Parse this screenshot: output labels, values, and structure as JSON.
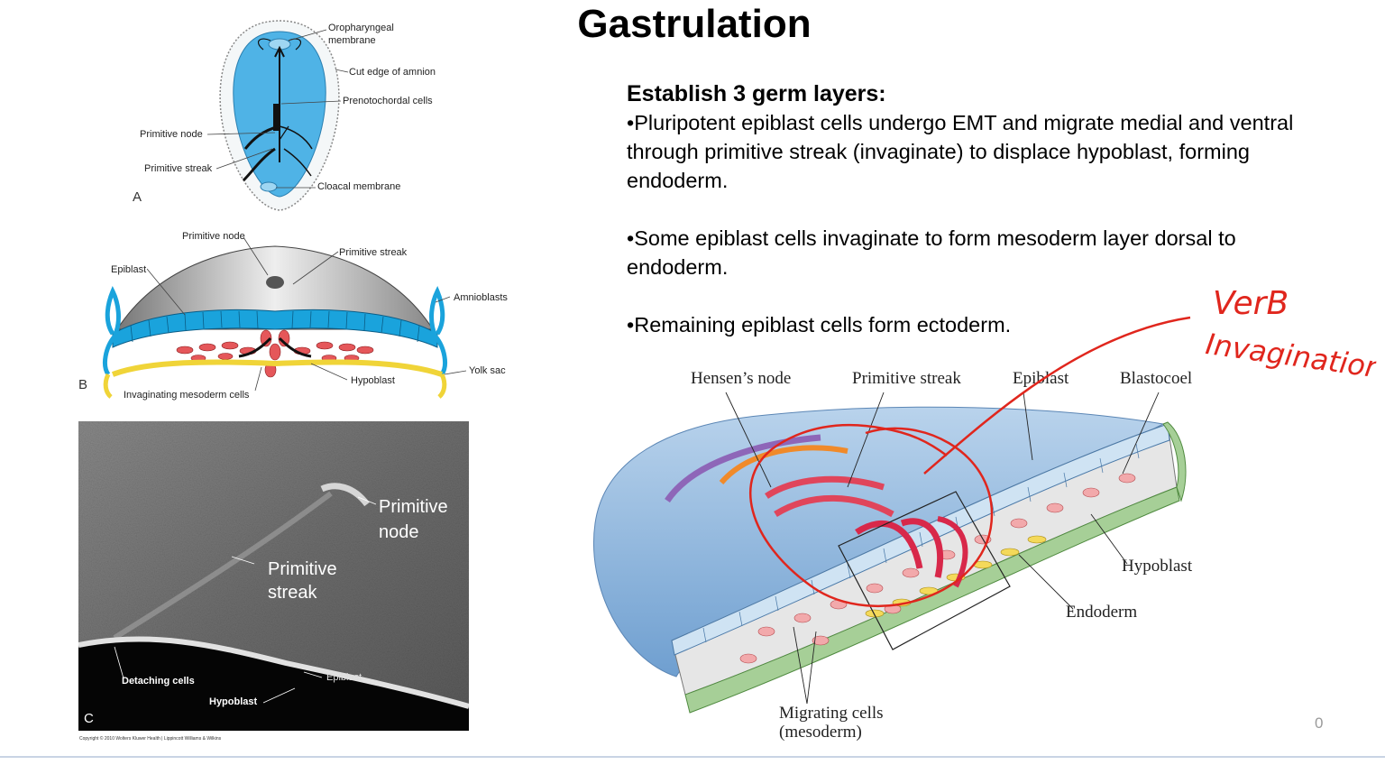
{
  "slide": {
    "title": "Gastrulation",
    "page_number": "0"
  },
  "text_block": {
    "heading": "Establish 3 germ layers:",
    "bullets": [
      "•Pluripotent epiblast cells undergo EMT and migrate medial and ventral through primitive streak (invaginate) to displace hypoblast, forming endoderm.",
      "•Some epiblast cells invaginate to form mesoderm layer dorsal to endoderm.",
      "•Remaining epiblast cells form ectoderm."
    ]
  },
  "figure_a": {
    "letter": "A",
    "labels": {
      "oropharyngeal": "Oropharyngeal",
      "membrane": "membrane",
      "cut_edge": "Cut edge of amnion",
      "prenotochordal": "Prenotochordal cells",
      "primitive_node": "Primitive node",
      "primitive_streak": "Primitive streak",
      "cloacal": "Cloacal membrane"
    }
  },
  "figure_b": {
    "letter": "B",
    "labels": {
      "primitive_node": "Primitive node",
      "primitive_streak": "Primitive streak",
      "epiblast": "Epiblast",
      "amnioblasts": "Amnioblasts",
      "yolk_sac": "Yolk sac",
      "hypoblast": "Hypoblast",
      "invaginating": "Invaginating mesoderm cells"
    }
  },
  "figure_c": {
    "letter": "C",
    "labels": {
      "primitive_node_1": "Primitive",
      "primitive_node_2": "node",
      "primitive_streak_1": "Primitive",
      "primitive_streak_2": "streak",
      "detaching": "Detaching cells",
      "hypoblast": "Hypoblast",
      "epiblast": "Epiblast"
    },
    "copyright": "Copyright © 2010 Wolters Kluwer Health | Lippincott Williams & Wilkins"
  },
  "figure_d": {
    "labels": {
      "hensens_node": "Hensen’s node",
      "primitive_streak": "Primitive streak",
      "epiblast": "Epiblast",
      "blastocoel": "Blastocoel",
      "hypoblast": "Hypoblast",
      "endoderm": "Endoderm",
      "migrating_1": "Migrating cells",
      "migrating_2": "(mesoderm)"
    }
  },
  "annotation": {
    "line1": "VerB",
    "line2": "Invagination",
    "color": "#e0261d"
  }
}
